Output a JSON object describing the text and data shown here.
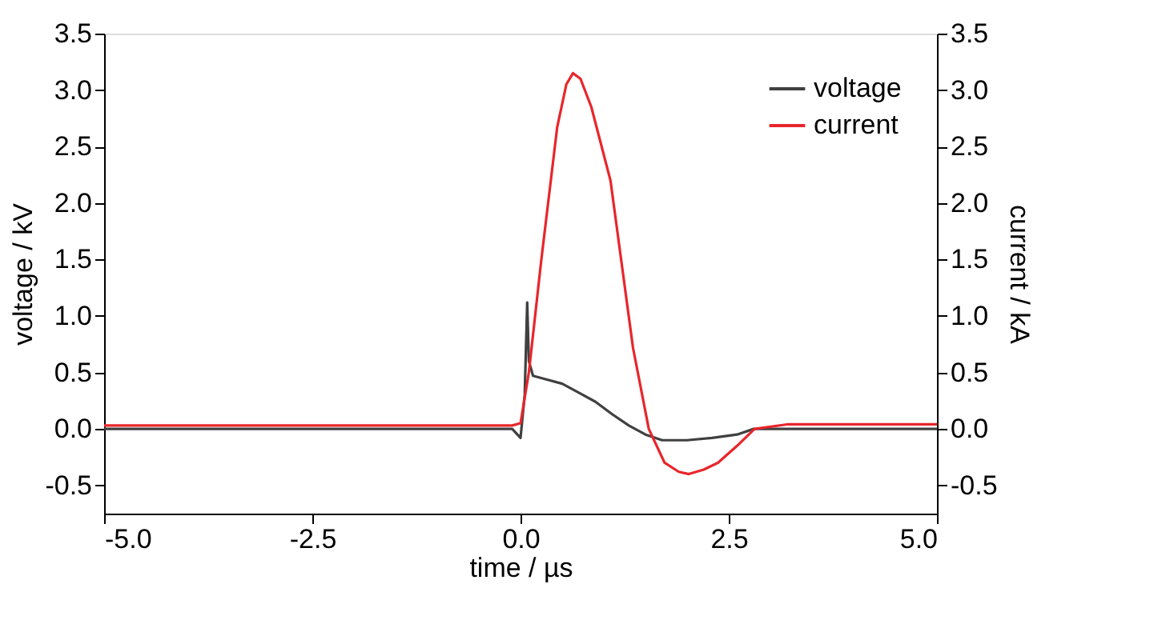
{
  "chart_data": {
    "type": "line",
    "xlabel": "time / µs",
    "ylabel": "voltage / kV",
    "y2label": "current / kA",
    "xlim": [
      -5,
      5
    ],
    "xticks": [
      {
        "value": -5,
        "label": "-5.0"
      },
      -2.5,
      {
        "value": 0,
        "label": "0.0"
      },
      2.5,
      {
        "value": 5,
        "label": "5.0"
      }
    ],
    "ylim": [
      -0.75,
      3.5
    ],
    "yticks": [
      -0.5,
      {
        "value": 0,
        "label": "0.0"
      },
      0.5,
      {
        "value": 1,
        "label": "1.0"
      },
      1.5,
      {
        "value": 2,
        "label": "2.0"
      },
      2.5,
      {
        "value": 3,
        "label": "3.0"
      },
      3.5
    ],
    "y2lim": [
      -0.75,
      3.5
    ],
    "y2ticks": [
      -0.5,
      {
        "value": 0,
        "label": "0.0"
      },
      0.5,
      {
        "value": 1,
        "label": "1.0"
      },
      1.5,
      {
        "value": 2,
        "label": "2.0"
      },
      2.5,
      {
        "value": 3,
        "label": "3.0"
      },
      3.5
    ],
    "legend": "top right",
    "grid": false,
    "line_style": "solid",
    "marker": "none",
    "series": [
      {
        "name": "voltage",
        "color": "#404040",
        "x": [
          -5,
          -4,
          -3,
          -2,
          -1,
          -0.1,
          0.0,
          0.05,
          0.08,
          0.1,
          0.15,
          0.3,
          0.5,
          0.7,
          0.9,
          1.1,
          1.3,
          1.5,
          1.7,
          2.0,
          2.3,
          2.6,
          2.8,
          3.2,
          4,
          5
        ],
        "values": [
          0.0,
          0.0,
          0.0,
          0.0,
          0.0,
          0.0,
          -0.08,
          0.3,
          1.12,
          0.6,
          0.47,
          0.44,
          0.4,
          0.32,
          0.24,
          0.13,
          0.03,
          -0.05,
          -0.1,
          -0.1,
          -0.08,
          -0.05,
          0.0,
          0.0,
          0.0,
          0.0
        ]
      },
      {
        "name": "current",
        "color": "#e8262b",
        "axis": "y2",
        "x": [
          -5,
          -4,
          -3,
          -2,
          -1,
          -0.1,
          0.0,
          0.1,
          0.25,
          0.44,
          0.55,
          0.63,
          0.72,
          0.85,
          1.08,
          1.35,
          1.54,
          1.73,
          1.9,
          2.02,
          2.2,
          2.37,
          2.6,
          2.81,
          3.2,
          4,
          5
        ],
        "values": [
          0.03,
          0.03,
          0.03,
          0.03,
          0.03,
          0.03,
          0.05,
          0.5,
          1.5,
          2.67,
          3.05,
          3.15,
          3.1,
          2.85,
          2.2,
          0.72,
          0.0,
          -0.3,
          -0.38,
          -0.4,
          -0.36,
          -0.3,
          -0.15,
          0.0,
          0.04,
          0.04,
          0.04
        ]
      }
    ]
  }
}
